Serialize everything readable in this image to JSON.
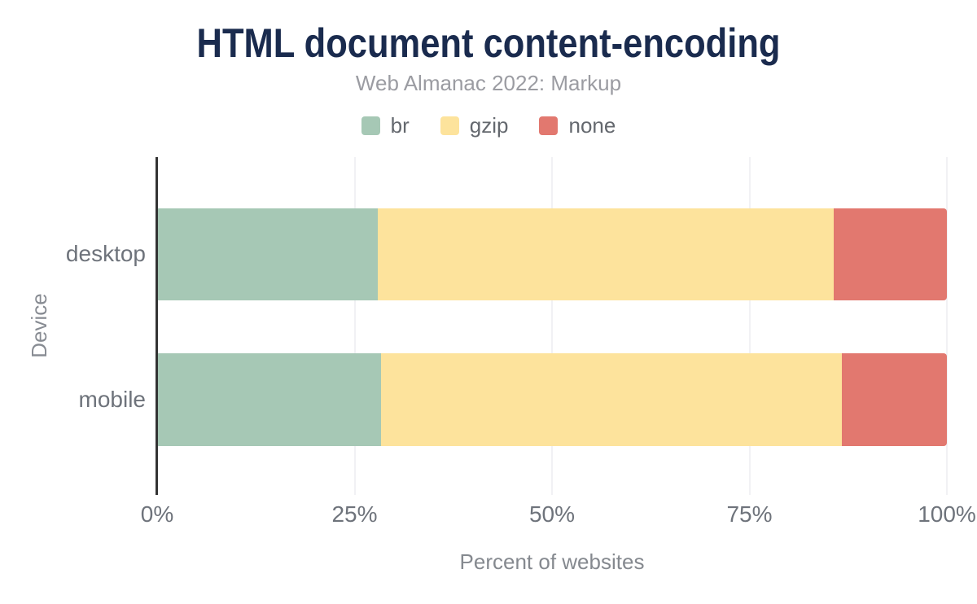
{
  "chart": {
    "title": "HTML document content-encoding",
    "subtitle": "Web Almanac 2022: Markup",
    "xlabel": "Percent of websites",
    "ylabel": "Device"
  },
  "chart_data": {
    "type": "bar",
    "orientation": "horizontal",
    "stacked": true,
    "title": "HTML document content-encoding",
    "subtitle": "Web Almanac 2022: Markup",
    "xlabel": "Percent of websites",
    "ylabel": "Device",
    "categories": [
      "desktop",
      "mobile"
    ],
    "series": [
      {
        "name": "br",
        "color": "#a6c8b5",
        "values": [
          27.9,
          28.3
        ]
      },
      {
        "name": "gzip",
        "color": "#fde39c",
        "values": [
          57.8,
          58.4
        ]
      },
      {
        "name": "none",
        "color": "#e2786f",
        "values": [
          14.3,
          13.3
        ]
      }
    ],
    "xlim": [
      0,
      100
    ],
    "xticks": [
      {
        "value": 0,
        "label": "0%"
      },
      {
        "value": 25,
        "label": "25%"
      },
      {
        "value": 50,
        "label": "50%"
      },
      {
        "value": 75,
        "label": "75%"
      },
      {
        "value": 100,
        "label": "100%"
      }
    ],
    "grid": "vertical-only",
    "legend_position": "top"
  },
  "colors": {
    "title": "#1a2b4e",
    "subtitle": "#9b9ca2",
    "axis_line": "#333333",
    "gridline": "#f1f1f4",
    "tick_text": "#6e737b",
    "axis_title_text": "#85898f",
    "background": "#ffffff"
  }
}
